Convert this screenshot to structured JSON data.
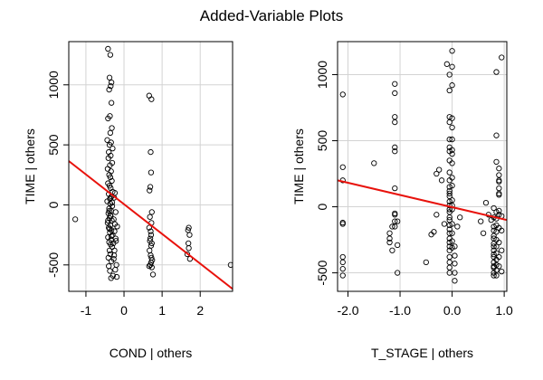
{
  "title": "Added-Variable Plots",
  "chart_data": [
    {
      "type": "scatter",
      "xlabel": "COND | others",
      "ylabel": "TIME | others",
      "xlim": [
        -1.45,
        2.85
      ],
      "ylim": [
        -720,
        1360
      ],
      "xticks": [
        -1,
        0,
        1,
        2
      ],
      "xtick_labels": [
        "-1",
        "0",
        "1",
        "2"
      ],
      "yticks": [
        -500,
        0,
        500,
        1000
      ],
      "ytick_labels": [
        "-500",
        "0",
        "500",
        "1000"
      ],
      "grid": true,
      "line_color": "#e8120c",
      "line": {
        "x": [
          -1.45,
          2.85
        ],
        "y": [
          365,
          -700
        ]
      },
      "points": {
        "x": [
          -1.28,
          -0.42,
          -0.36,
          -0.38,
          -0.33,
          -0.35,
          -0.39,
          -0.33,
          -0.37,
          -0.42,
          -0.32,
          -0.36,
          -0.44,
          -0.34,
          -0.38,
          -0.3,
          -0.4,
          -0.35,
          -0.41,
          -0.31,
          -0.37,
          -0.43,
          -0.34,
          -0.39,
          -0.36,
          -0.32,
          -0.42,
          -0.38,
          -0.35,
          -0.3,
          -0.4,
          -0.33,
          -0.37,
          -0.44,
          -0.36,
          -0.31,
          -0.39,
          -0.34,
          -0.41,
          -0.35,
          -0.38,
          -0.32,
          -0.43,
          -0.36,
          -0.4,
          -0.33,
          -0.37,
          -0.3,
          -0.42,
          -0.34,
          -0.39,
          -0.35,
          -0.31,
          -0.38,
          -0.36,
          -0.41,
          -0.33,
          -0.4,
          -0.37,
          -0.29,
          -0.34,
          -0.42,
          -0.36,
          -0.39,
          -0.31,
          -0.35,
          -0.38,
          -0.33,
          -0.28,
          -0.25,
          -0.18,
          -0.27,
          -0.22,
          -0.26,
          -0.24,
          -0.21,
          -0.25,
          -0.27,
          -0.2,
          -0.23,
          -0.26,
          -0.22,
          -0.24,
          -0.19,
          0.66,
          0.72,
          0.7,
          0.71,
          0.69,
          0.67,
          0.73,
          0.68,
          0.72,
          0.66,
          0.7,
          0.71,
          0.69,
          0.68,
          0.73,
          0.71,
          0.67,
          0.7,
          0.72,
          0.74,
          0.71,
          0.69,
          0.66,
          0.73,
          0.76,
          1.68,
          1.72,
          1.69,
          1.7,
          1.66,
          1.73,
          1.7,
          2.8
        ],
        "y": [
          -120,
          1300,
          1250,
          1060,
          1020,
          990,
          960,
          850,
          740,
          720,
          640,
          600,
          540,
          520,
          500,
          470,
          440,
          410,
          390,
          350,
          330,
          300,
          280,
          250,
          230,
          200,
          180,
          160,
          140,
          110,
          90,
          70,
          50,
          30,
          10,
          -10,
          -30,
          -50,
          -70,
          -90,
          -110,
          -130,
          -150,
          -170,
          -190,
          -210,
          -230,
          -250,
          -270,
          -290,
          -310,
          -330,
          -350,
          -380,
          -410,
          -440,
          -470,
          -510,
          -550,
          -590,
          -610,
          -130,
          -90,
          -50,
          20,
          60,
          -200,
          -260,
          -320,
          -220,
          -180,
          -120,
          -60,
          60,
          100,
          -300,
          -380,
          -450,
          -500,
          -540,
          -420,
          -280,
          -160,
          -600,
          910,
          880,
          440,
          270,
          150,
          120,
          -60,
          -100,
          -150,
          -190,
          -220,
          -250,
          -280,
          -300,
          -320,
          -340,
          -380,
          -420,
          -440,
          -460,
          -480,
          -500,
          -510,
          -520,
          -580,
          -210,
          -250,
          -320,
          -360,
          -410,
          -450,
          -190,
          -500
        ]
      }
    },
    {
      "type": "scatter",
      "xlabel": "T_STAGE | others",
      "ylabel": "TIME | others",
      "xlim": [
        -2.2,
        1.05
      ],
      "ylim": [
        -640,
        1250
      ],
      "xticks": [
        -2.0,
        -1.0,
        0.0,
        1.0
      ],
      "xtick_labels": [
        "-2.0",
        "-1.0",
        "0.0",
        "1.0"
      ],
      "yticks": [
        -500,
        0,
        500,
        1000
      ],
      "ytick_labels": [
        "-500",
        "0",
        "500",
        "1000"
      ],
      "grid": true,
      "line_color": "#e8120c",
      "line": {
        "x": [
          -2.2,
          1.05
        ],
        "y": [
          200,
          -100
        ]
      },
      "points": {
        "x": [
          -2.1,
          -2.1,
          -2.1,
          -2.1,
          -2.1,
          -2.1,
          -2.1,
          -2.1,
          -2.1,
          -1.5,
          -1.2,
          -1.2,
          -1.2,
          -1.15,
          -1.15,
          -1.1,
          -1.1,
          -1.1,
          -1.1,
          -1.1,
          -1.1,
          -1.1,
          -1.1,
          -1.1,
          -1.1,
          -1.1,
          -1.05,
          -1.05,
          -1.05,
          -0.4,
          -0.35,
          -0.3,
          -0.25,
          -0.2,
          -0.15,
          -0.1,
          -0.05,
          -0.05,
          -0.05,
          -0.05,
          -0.05,
          -0.05,
          -0.05,
          -0.05,
          -0.05,
          -0.05,
          -0.05,
          -0.05,
          -0.05,
          -0.05,
          -0.05,
          -0.05,
          -0.05,
          -0.05,
          -0.05,
          -0.05,
          -0.05,
          -0.05,
          -0.05,
          -0.05,
          -0.05,
          -0.05,
          -0.05,
          -0.05,
          -0.05,
          -0.05,
          -0.05,
          0.0,
          0.0,
          0.0,
          0.0,
          0.0,
          0.0,
          0.0,
          0.0,
          0.0,
          0.0,
          0.0,
          0.0,
          0.0,
          0.0,
          0.0,
          0.0,
          0.0,
          0.0,
          0.05,
          0.05,
          0.05,
          0.05,
          0.05,
          -0.5,
          -0.3,
          0.1,
          0.15,
          0.55,
          0.6,
          0.65,
          0.7,
          0.75,
          0.8,
          0.8,
          0.8,
          0.8,
          0.8,
          0.8,
          0.8,
          0.8,
          0.8,
          0.8,
          0.8,
          0.8,
          0.8,
          0.8,
          0.8,
          0.8,
          0.85,
          0.85,
          0.85,
          0.85,
          0.85,
          0.85,
          0.85,
          0.85,
          0.85,
          0.85,
          0.85,
          0.85,
          0.85,
          0.85,
          0.9,
          0.9,
          0.9,
          0.9,
          0.9,
          0.9,
          0.9,
          0.9,
          0.9,
          0.9,
          0.9,
          0.9,
          0.9,
          0.95,
          0.95,
          0.95,
          0.95,
          0.95
        ],
        "y": [
          850,
          300,
          200,
          -120,
          -130,
          -380,
          -420,
          -470,
          -520,
          330,
          -200,
          -240,
          -270,
          -330,
          -150,
          930,
          860,
          680,
          640,
          450,
          420,
          140,
          -50,
          -60,
          -110,
          -150,
          -500,
          -290,
          -110,
          -210,
          -190,
          250,
          280,
          200,
          -130,
          1080,
          1000,
          880,
          680,
          640,
          510,
          450,
          420,
          350,
          260,
          200,
          150,
          120,
          100,
          80,
          40,
          10,
          -20,
          -40,
          -80,
          -100,
          -140,
          -170,
          -200,
          -240,
          -270,
          -300,
          -330,
          -380,
          -420,
          -460,
          -500,
          1180,
          1060,
          920,
          670,
          600,
          510,
          430,
          400,
          330,
          220,
          160,
          50,
          10,
          -20,
          -130,
          -200,
          -260,
          -310,
          -370,
          -430,
          -500,
          -560,
          -300,
          -420,
          -60,
          -150,
          -80,
          -110,
          -200,
          30,
          -60,
          -100,
          -150,
          -220,
          -280,
          -330,
          -380,
          -420,
          -460,
          -500,
          -180,
          -240,
          -300,
          -360,
          -80,
          -520,
          -450,
          -10,
          340,
          540,
          -40,
          -90,
          -140,
          -190,
          -250,
          -300,
          -350,
          -400,
          -440,
          -480,
          -520,
          1020,
          -30,
          90,
          140,
          190,
          240,
          290,
          200,
          100,
          -60,
          -160,
          -270,
          -380,
          -450,
          1130,
          -70,
          -180,
          -330,
          -490
        ]
      }
    }
  ]
}
